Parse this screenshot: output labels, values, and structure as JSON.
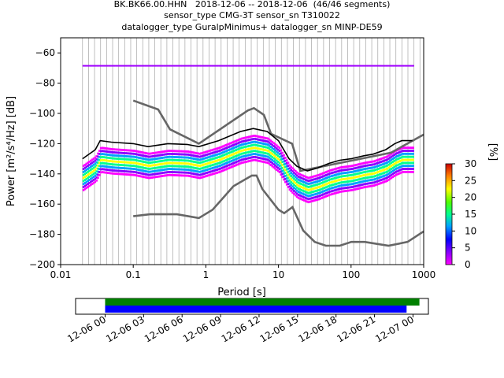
{
  "title_lines": [
    "BK.BK66.00.HHN   2018-12-06 -- 2018-12-06  (46/46 segments)",
    "sensor_type CMG-3T sensor_sn T310022",
    "datalogger_type GuralpMinimus+ datalogger_sn MINP-DE59"
  ],
  "chart_data": [
    {
      "type": "heatmap",
      "xlabel": "Period [s]",
      "ylabel": "Power [m²/s⁴/Hz] [dB]",
      "xscale": "log",
      "xlim": [
        0.01,
        1000
      ],
      "ylim": [
        -200,
        -50
      ],
      "x_ticks": [
        {
          "value": 0.01,
          "label": "0.01"
        },
        {
          "value": 0.1,
          "label": "0.1"
        },
        {
          "value": 1,
          "label": "1"
        },
        {
          "value": 10,
          "label": "10"
        },
        {
          "value": 100,
          "label": "100"
        },
        {
          "value": 1000,
          "label": "1000"
        }
      ],
      "y_ticks": [
        {
          "value": -60,
          "label": "−60"
        },
        {
          "value": -80,
          "label": "−80"
        },
        {
          "value": -100,
          "label": "−100"
        },
        {
          "value": -120,
          "label": "−120"
        },
        {
          "value": -140,
          "label": "−140"
        },
        {
          "value": -160,
          "label": "−160"
        },
        {
          "value": -180,
          "label": "−180"
        },
        {
          "value": -200,
          "label": "−200"
        }
      ],
      "grid": "vertical lines at period bins",
      "series": [
        {
          "kind": "noise-model-high",
          "color": "#666666",
          "x": [
            0.1,
            0.22,
            0.32,
            0.8,
            3.8,
            4.6,
            6.3,
            7.9,
            15.4,
            20,
            354.8,
            1000
          ],
          "y": [
            -91.5,
            -97.4,
            -110.5,
            -120,
            -98,
            -96.5,
            -101,
            -113.5,
            -120,
            -138,
            -126,
            -114
          ]
        },
        {
          "kind": "noise-model-low",
          "color": "#666666",
          "x": [
            0.1,
            0.17,
            0.4,
            0.8,
            1.24,
            2.4,
            4.3,
            5.0,
            6.0,
            10,
            12,
            15.6,
            21.9,
            31.6,
            45,
            70,
            101,
            154,
            328,
            600,
            1000
          ],
          "y": [
            -168,
            -166.7,
            -166.7,
            -169.2,
            -163.7,
            -148.1,
            -141.1,
            -141.1,
            -150,
            -163.7,
            -166,
            -162,
            -177.5,
            -185,
            -187.5,
            -187.5,
            -185,
            -185,
            -187.5,
            -185,
            -178
          ]
        },
        {
          "kind": "mean",
          "color": "#000000",
          "x": [
            0.02,
            0.03,
            0.035,
            0.05,
            0.1,
            0.16,
            0.3,
            0.55,
            0.8,
            1.5,
            3,
            4.5,
            7,
            10,
            14,
            18,
            25,
            35,
            50,
            70,
            100,
            150,
            200,
            300,
            400,
            500,
            700
          ],
          "y": [
            -130,
            -124,
            -118,
            -119,
            -120,
            -122,
            -120,
            -120.5,
            -122,
            -118,
            -112,
            -110,
            -112,
            -118,
            -130,
            -135,
            -138,
            -136,
            -133,
            -131,
            -130,
            -128,
            -127,
            -124,
            -120,
            -118,
            -118
          ]
        }
      ],
      "density_colorbar": {
        "label": "[%]",
        "range": [
          0,
          30
        ],
        "ticks": [
          "0",
          "5",
          "10",
          "15",
          "20",
          "25",
          "30"
        ]
      }
    },
    {
      "type": "timeline",
      "xlabels": [
        "12-06 00",
        "12-06 03",
        "12-06 06",
        "12-06 09",
        "12-06 12",
        "12-06 15",
        "12-06 18",
        "12-06 21",
        "12-07 00"
      ],
      "xlim_hours": [
        -2.3,
        25.2
      ],
      "bars": [
        {
          "color": "#008000",
          "start_hour": 0,
          "end_hour": 24.5
        },
        {
          "color": "#0000ff",
          "start_hour": 0,
          "end_hour": 23.5
        }
      ]
    }
  ]
}
